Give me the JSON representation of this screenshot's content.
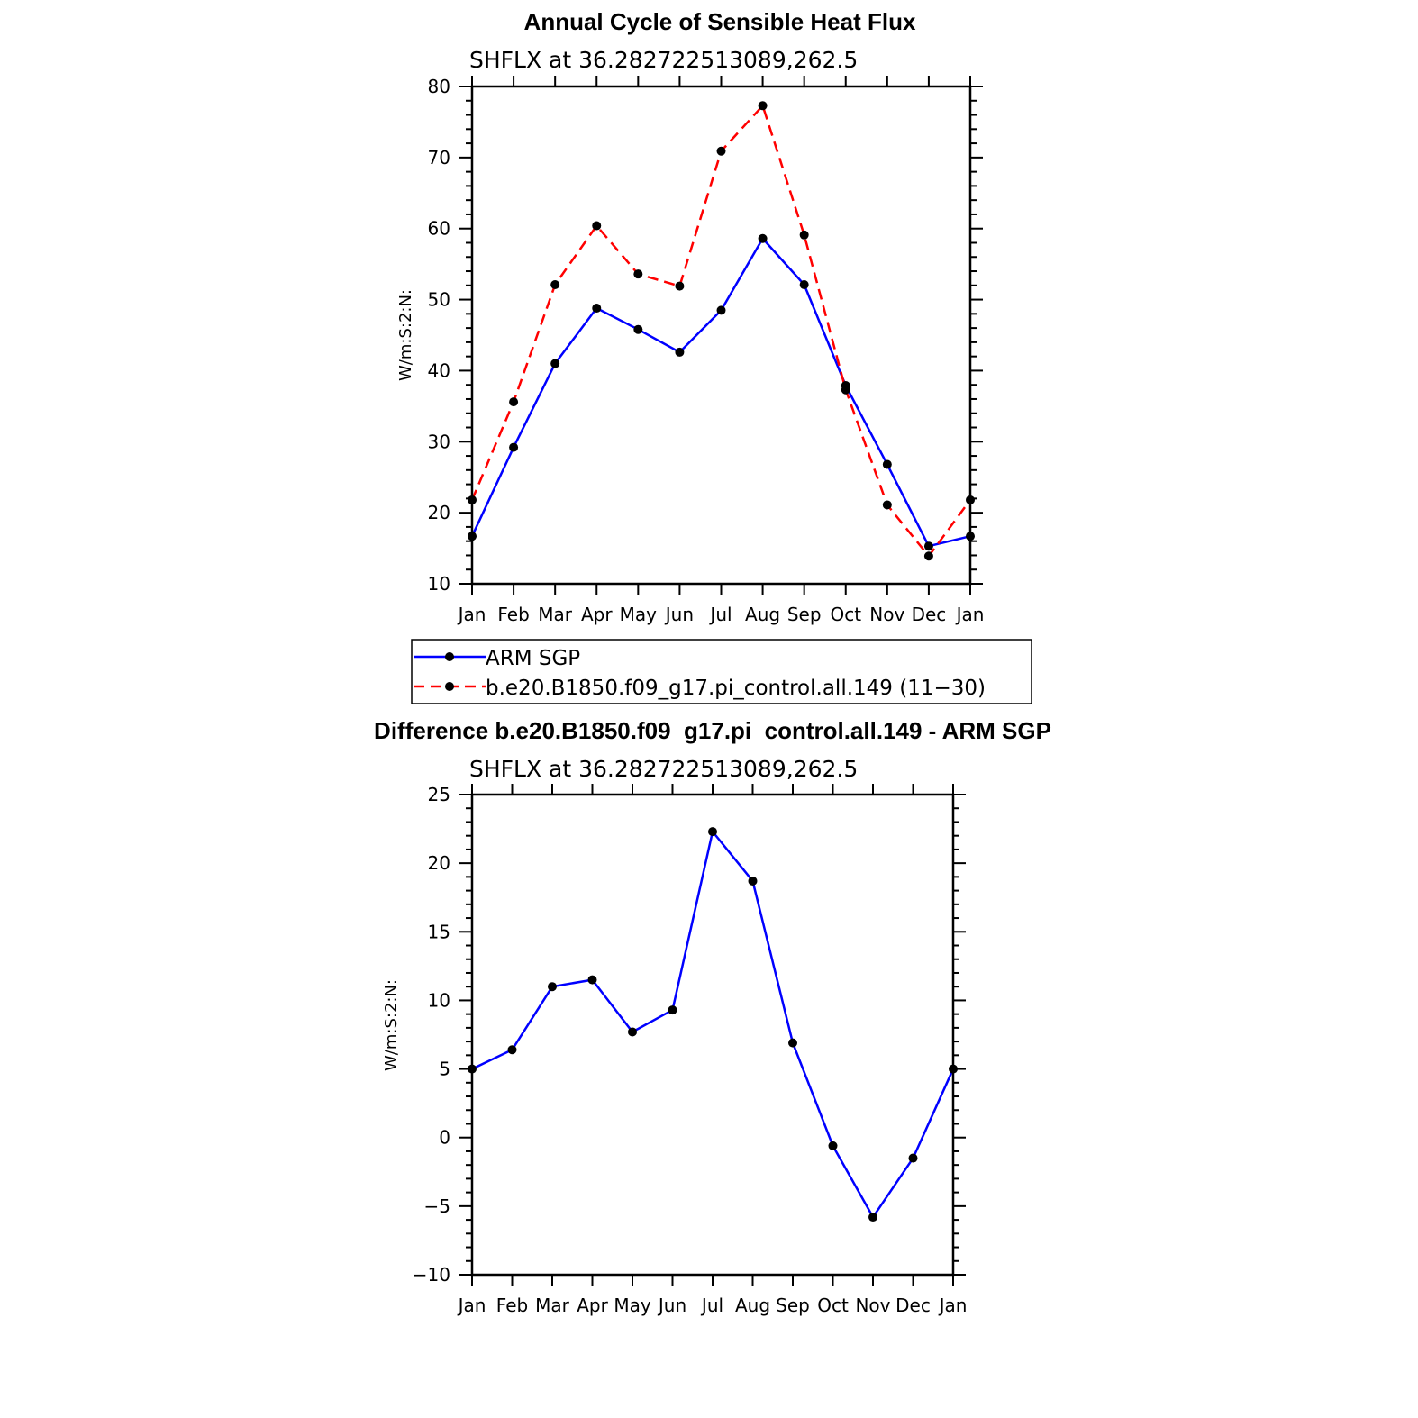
{
  "chart_data": [
    {
      "type": "line",
      "title": "Annual Cycle of Sensible Heat Flux",
      "subtitle": "SHFLX at 36.282722513089,262.5",
      "xlabel": "",
      "ylabel": "W/m:S:2:N:",
      "categories": [
        "Jan",
        "Feb",
        "Mar",
        "Apr",
        "May",
        "Jun",
        "Jul",
        "Aug",
        "Sep",
        "Oct",
        "Nov",
        "Dec",
        "Jan"
      ],
      "ylim": [
        10,
        80
      ],
      "yticks": [
        10,
        20,
        30,
        40,
        50,
        60,
        70,
        80
      ],
      "series": [
        {
          "name": "ARM SGP",
          "color": "#0000ff",
          "dash": "solid",
          "values": [
            16.7,
            29.2,
            41.0,
            48.8,
            45.8,
            42.6,
            48.5,
            58.6,
            52.1,
            37.9,
            26.8,
            15.3,
            16.7
          ]
        },
        {
          "name": "b.e20.B1850.f09_g17.pi_control.all.149 (11−30)",
          "color": "#ff0000",
          "dash": "dashed",
          "values": [
            21.8,
            35.6,
            52.1,
            60.4,
            53.6,
            51.9,
            70.9,
            77.3,
            59.1,
            37.3,
            21.1,
            13.9,
            21.8
          ]
        }
      ],
      "legend": "below"
    },
    {
      "type": "line",
      "title": "Difference b.e20.B1850.f09_g17.pi_control.all.149 - ARM SGP",
      "subtitle": "SHFLX at 36.282722513089,262.5",
      "xlabel": "",
      "ylabel": "W/m:S:2:N:",
      "categories": [
        "Jan",
        "Feb",
        "Mar",
        "Apr",
        "May",
        "Jun",
        "Jul",
        "Aug",
        "Sep",
        "Oct",
        "Nov",
        "Dec",
        "Jan"
      ],
      "ylim": [
        -10,
        25
      ],
      "yticks": [
        -10,
        -5,
        0,
        5,
        10,
        15,
        20,
        25
      ],
      "ytick_labels": [
        "−10",
        "−5",
        "0",
        "5",
        "10",
        "15",
        "20",
        "25"
      ],
      "series": [
        {
          "name": "Difference",
          "color": "#0000ff",
          "dash": "solid",
          "values": [
            5.0,
            6.4,
            11.0,
            11.5,
            7.7,
            9.3,
            22.3,
            18.7,
            6.9,
            -0.6,
            -5.8,
            -1.5,
            5.0
          ]
        }
      ]
    }
  ]
}
